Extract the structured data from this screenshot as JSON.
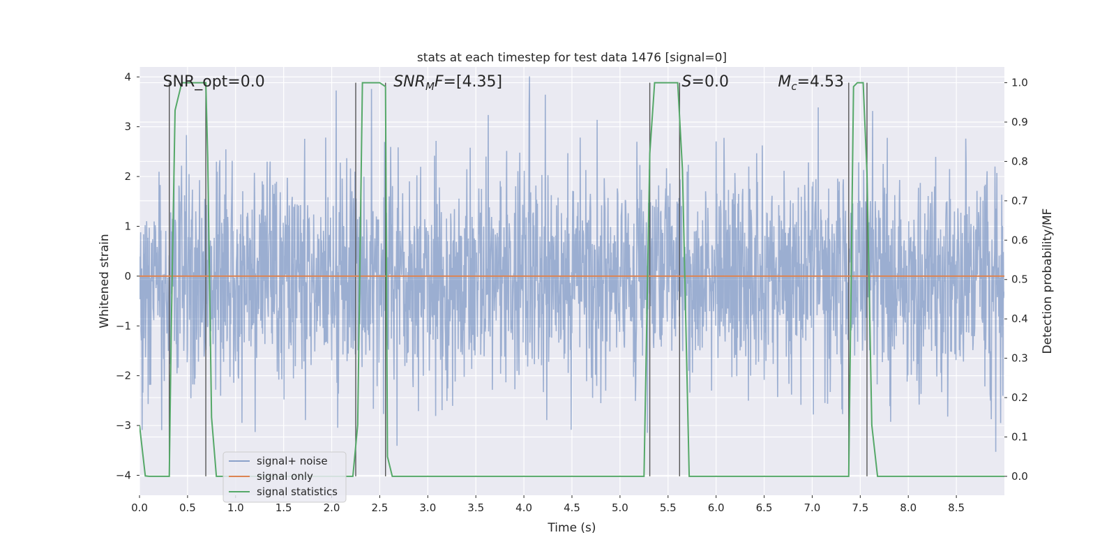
{
  "chart_data": {
    "type": "line",
    "title": "stats at each timestep for test data 1476 [signal=0]",
    "xlabel": "Time (s)",
    "ylabel": "Whitened strain",
    "ylabel_right": "Detection probability/MF",
    "xlim": [
      0.0,
      9.0
    ],
    "ylim": [
      -4.4,
      4.2
    ],
    "ylim_right": [
      -0.048,
      1.04
    ],
    "x_ticks": [
      0.0,
      0.5,
      1.0,
      1.5,
      2.0,
      2.5,
      3.0,
      3.5,
      4.0,
      4.5,
      5.0,
      5.5,
      6.0,
      6.5,
      7.0,
      7.5,
      8.0,
      8.5
    ],
    "x_tick_labels": [
      "0.0",
      "0.5",
      "1.0",
      "1.5",
      "2.0",
      "2.5",
      "3.0",
      "3.5",
      "4.0",
      "4.5",
      "5.0",
      "5.5",
      "6.0",
      "6.5",
      "7.0",
      "7.5",
      "8.0",
      "8.5"
    ],
    "y_ticks": [
      -4,
      -3,
      -2,
      -1,
      0,
      1,
      2,
      3,
      4
    ],
    "y_tick_labels": [
      "−4",
      "−3",
      "−2",
      "−1",
      "0",
      "1",
      "2",
      "3",
      "4"
    ],
    "y_ticks_right": [
      0.0,
      0.1,
      0.2,
      0.3,
      0.4,
      0.5,
      0.6,
      0.7,
      0.8,
      0.9,
      1.0
    ],
    "y_tick_labels_right": [
      "0.0",
      "0.1",
      "0.2",
      "0.3",
      "0.4",
      "0.5",
      "0.6",
      "0.7",
      "0.8",
      "0.9",
      "1.0"
    ],
    "grid": true,
    "legend_position": "lower-left",
    "annotations": [
      {
        "text_parts": [
          {
            "t": "SNR_opt=0.0",
            "style": "normal"
          }
        ],
        "x": 0.2
      },
      {
        "text_parts": [
          {
            "t": "SNR",
            "style": "italic"
          },
          {
            "t": "M",
            "style": "italic-sub"
          },
          {
            "t": "F",
            "style": "italic"
          },
          {
            "t": "=[4.35]",
            "style": "normal"
          }
        ],
        "x": 2.6
      },
      {
        "text_parts": [
          {
            "t": "S",
            "style": "italic"
          },
          {
            "t": "=0.0",
            "style": "normal"
          }
        ],
        "x": 5.6
      },
      {
        "text_parts": [
          {
            "t": "M",
            "style": "italic"
          },
          {
            "t": "c",
            "style": "italic-sub"
          },
          {
            "t": "=4.53",
            "style": "normal"
          }
        ],
        "x": 6.6
      }
    ],
    "vertical_markers": [
      0.31,
      0.69,
      2.25,
      2.56,
      5.31,
      5.62,
      7.38,
      7.57
    ],
    "series": [
      {
        "name": "signal+ noise",
        "color": "#4c72b0",
        "alpha": 0.5,
        "style": "dense-noise",
        "sample_rate_hz": 256,
        "std": 1.1,
        "seed": 1476
      },
      {
        "name": "signal only",
        "color": "#dd8452",
        "axis": "left",
        "x": [
          0.0,
          9.0
        ],
        "y": [
          0.0,
          0.0
        ]
      },
      {
        "name": "signal statistics",
        "color": "#55a868",
        "axis": "right",
        "x": [
          0.0,
          0.06,
          0.1,
          0.31,
          0.33,
          0.37,
          0.44,
          0.69,
          0.71,
          0.75,
          0.8,
          2.22,
          2.27,
          2.32,
          2.5,
          2.56,
          2.58,
          2.63,
          5.25,
          5.31,
          5.36,
          5.6,
          5.65,
          5.72,
          7.38,
          7.43,
          7.47,
          7.53,
          7.57,
          7.62,
          7.68,
          9.0
        ],
        "y": [
          0.13,
          0.001,
          0.0,
          0.0,
          0.37,
          0.93,
          1.0,
          1.0,
          0.81,
          0.15,
          0.0,
          0.0,
          0.13,
          1.0,
          1.0,
          0.99,
          0.05,
          0.0,
          0.0,
          0.82,
          1.0,
          1.0,
          0.78,
          0.0,
          0.0,
          0.99,
          1.0,
          1.0,
          0.77,
          0.13,
          0.0,
          0.0
        ]
      }
    ]
  }
}
